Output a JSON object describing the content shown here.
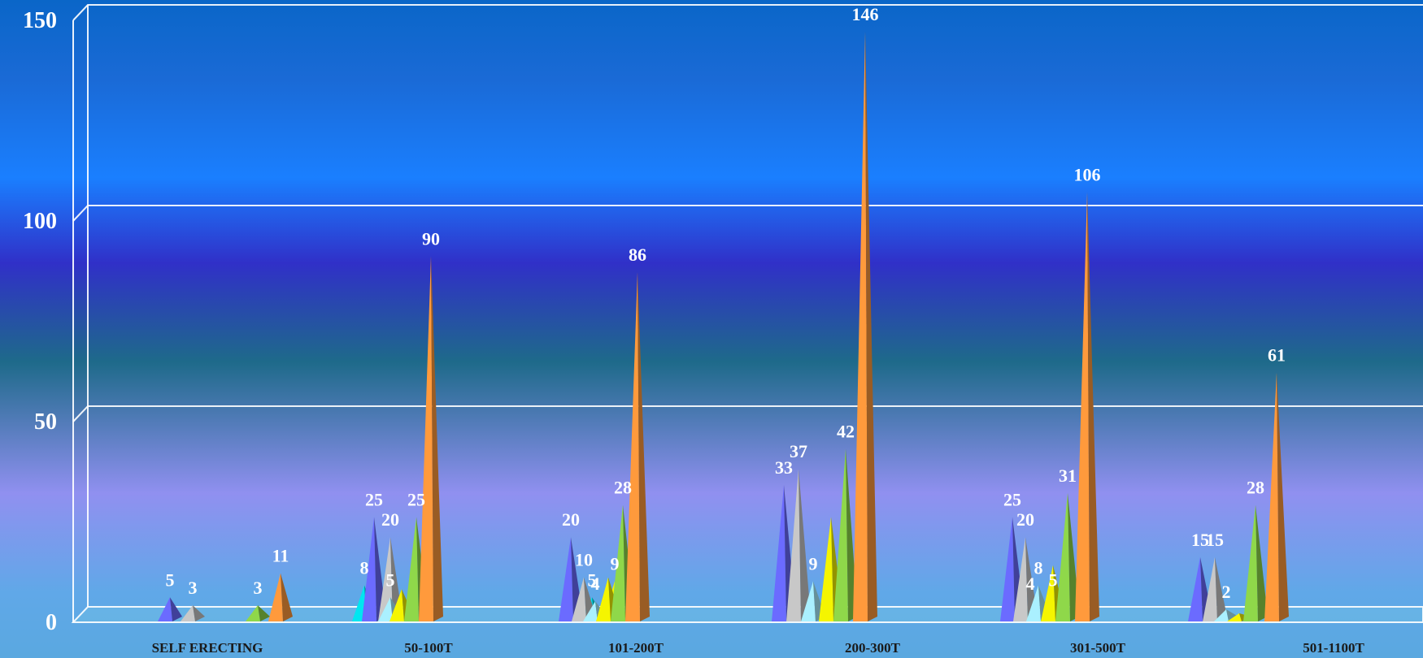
{
  "chart_data": {
    "type": "bar",
    "bar_shape": "pyramid",
    "y_ticks": [
      "0",
      "50",
      "100",
      "150"
    ],
    "ylim": [
      0,
      150
    ],
    "grid": true,
    "legend": "none",
    "categories": [
      "SELF ERECTING",
      "50-100T",
      "101-200T",
      "200-300T",
      "301-500T",
      "501-1100T"
    ],
    "series_colors": [
      "#00e6f0",
      "#6b6bff",
      "#c8c8c8",
      "#aaf0ff",
      "#f5f500",
      "#8fd84a",
      "#ff9a3c"
    ],
    "points": [
      {
        "category": 0,
        "slot": 1,
        "value": 5,
        "label": "5"
      },
      {
        "category": 0,
        "slot": 2,
        "value": 3,
        "label": "3"
      },
      {
        "category": 0,
        "slot": 5,
        "value": 3,
        "label": "3"
      },
      {
        "category": 0,
        "slot": 6,
        "value": 11,
        "label": "11"
      },
      {
        "category": 1,
        "slot": 0,
        "value": 8,
        "label": "8"
      },
      {
        "category": 1,
        "slot": 1,
        "value": 25,
        "label": "25"
      },
      {
        "category": 1,
        "slot": 2,
        "value": 20,
        "label": "20"
      },
      {
        "category": 1,
        "slot": 3,
        "value": 5,
        "label": "5"
      },
      {
        "category": 1,
        "slot": 4,
        "value": 7,
        "label": ""
      },
      {
        "category": 1,
        "slot": 5,
        "value": 25,
        "label": "25"
      },
      {
        "category": 1,
        "slot": 6,
        "value": 90,
        "label": "90"
      },
      {
        "category": 2,
        "slot": 0,
        "value": 5,
        "label": "5"
      },
      {
        "category": 2,
        "slot": 4,
        "value": 9,
        "label": "9"
      },
      {
        "category": 2,
        "slot": 1,
        "value": 20,
        "label": "20"
      },
      {
        "category": 2,
        "slot": 2,
        "value": 10,
        "label": "10"
      },
      {
        "category": 2,
        "slot": 3,
        "value": 4,
        "label": "4"
      },
      {
        "category": 2,
        "slot": 4,
        "value": 10,
        "label": ""
      },
      {
        "category": 2,
        "slot": 5,
        "value": 28,
        "label": "28"
      },
      {
        "category": 2,
        "slot": 6,
        "value": 86,
        "label": "86"
      },
      {
        "category": 3,
        "slot": 1,
        "value": 33,
        "label": "33"
      },
      {
        "category": 3,
        "slot": 2,
        "value": 37,
        "label": "37"
      },
      {
        "category": 3,
        "slot": 3,
        "value": 9,
        "label": "9"
      },
      {
        "category": 3,
        "slot": 4,
        "value": 25,
        "label": ""
      },
      {
        "category": 3,
        "slot": 5,
        "value": 42,
        "label": "42"
      },
      {
        "category": 3,
        "slot": 6,
        "value": 146,
        "label": "146"
      },
      {
        "category": 4,
        "slot": 0,
        "value": 4,
        "label": "4"
      },
      {
        "category": 4,
        "slot": 4,
        "value": 5,
        "label": "5"
      },
      {
        "category": 4,
        "slot": 1,
        "value": 25,
        "label": "25"
      },
      {
        "category": 4,
        "slot": 2,
        "value": 20,
        "label": "20"
      },
      {
        "category": 4,
        "slot": 3,
        "value": 8,
        "label": "8"
      },
      {
        "category": 4,
        "slot": 4,
        "value": 13,
        "label": ""
      },
      {
        "category": 4,
        "slot": 5,
        "value": 31,
        "label": "31"
      },
      {
        "category": 4,
        "slot": 6,
        "value": 106,
        "label": "106"
      },
      {
        "category": 5,
        "slot": 1,
        "value": 15,
        "label": "15"
      },
      {
        "category": 5,
        "slot": 2,
        "value": 15,
        "label": "15"
      },
      {
        "category": 5,
        "slot": 3,
        "value": 2,
        "label": "2"
      },
      {
        "category": 5,
        "slot": 4,
        "value": 1,
        "label": ""
      },
      {
        "category": 5,
        "slot": 5,
        "value": 28,
        "label": "28"
      },
      {
        "category": 5,
        "slot": 6,
        "value": 61,
        "label": "61"
      }
    ]
  }
}
